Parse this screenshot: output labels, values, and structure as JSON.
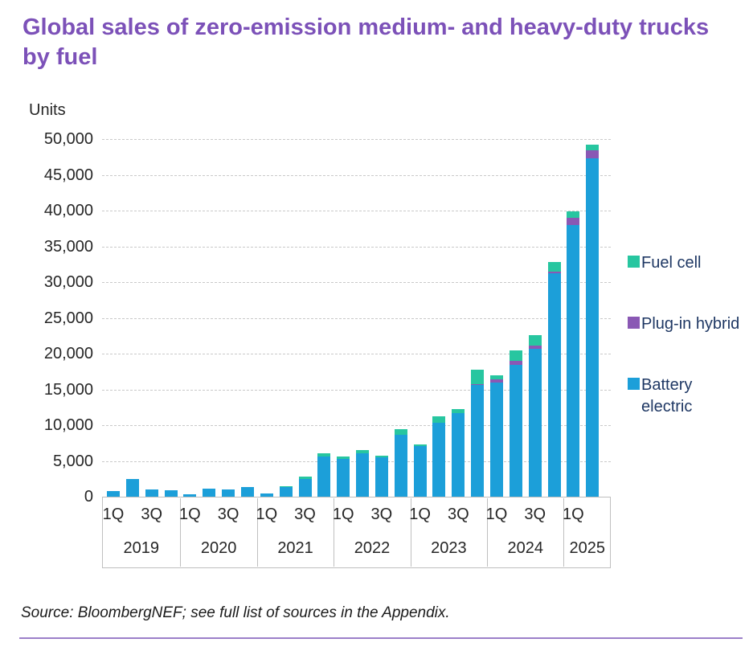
{
  "title": "Global sales of zero-emission medium- and heavy-duty trucks by fuel",
  "units_label": "Units",
  "source": "Source: BloombergNEF; see full list of sources in the Appendix.",
  "colors": {
    "title_text": "#7C51B8",
    "axis_text": "#262626",
    "legend_text": "#1F3864",
    "gridline": "#c9c9c9",
    "axis_box_border": "#bfbfbf",
    "bottom_rule": "#9C7FC9",
    "battery_electric": "#1C9FD9",
    "plug_in_hybrid": "#8A58B4",
    "fuel_cell": "#27C6A0"
  },
  "legend": [
    {
      "label": "Fuel cell",
      "color": "#27C6A0"
    },
    {
      "label": "Plug-in hybrid",
      "color": "#8A58B4"
    },
    {
      "label": "Battery electric",
      "color": "#1C9FD9"
    }
  ],
  "chart_data": {
    "type": "bar",
    "stacked": true,
    "title": "Global sales of zero-emission medium- and heavy-duty trucks by fuel",
    "ylabel": "Units",
    "ylim": [
      0,
      50000
    ],
    "ytick_step": 5000,
    "grid": "horizontal-dashed",
    "legend_position": "right",
    "quarter_tick_labels_shown": [
      "1Q",
      "3Q"
    ],
    "years": [
      "2019",
      "2020",
      "2021",
      "2022",
      "2023",
      "2024",
      "2025"
    ],
    "categories": [
      "2019 Q1",
      "2019 Q2",
      "2019 Q3",
      "2019 Q4",
      "2020 Q1",
      "2020 Q2",
      "2020 Q3",
      "2020 Q4",
      "2021 Q1",
      "2021 Q2",
      "2021 Q3",
      "2021 Q4",
      "2022 Q1",
      "2022 Q2",
      "2022 Q3",
      "2022 Q4",
      "2023 Q1",
      "2023 Q2",
      "2023 Q3",
      "2023 Q4",
      "2024 Q1",
      "2024 Q2",
      "2024 Q3",
      "2024 Q4",
      "2025 Q1",
      "2025 Q2"
    ],
    "series": [
      {
        "name": "Battery electric",
        "color": "#1C9FD9",
        "values": [
          800,
          2450,
          1000,
          900,
          350,
          1150,
          1050,
          1400,
          450,
          1400,
          2500,
          5600,
          5250,
          6050,
          5450,
          8600,
          7100,
          10300,
          11700,
          15600,
          15900,
          18450,
          20650,
          31200,
          38000,
          47300
        ]
      },
      {
        "name": "Plug-in hybrid",
        "color": "#8A58B4",
        "values": [
          0,
          0,
          0,
          0,
          0,
          0,
          0,
          0,
          0,
          0,
          0,
          0,
          0,
          0,
          0,
          0,
          0,
          0,
          0,
          150,
          480,
          560,
          450,
          300,
          950,
          1100
        ]
      },
      {
        "name": "Fuel cell",
        "color": "#27C6A0",
        "values": [
          0,
          0,
          0,
          0,
          0,
          0,
          0,
          0,
          0,
          100,
          260,
          450,
          350,
          450,
          250,
          800,
          250,
          950,
          500,
          2000,
          560,
          1490,
          1500,
          1300,
          950,
          800
        ]
      }
    ],
    "totals": [
      800,
      2450,
      1000,
      900,
      350,
      1150,
      1050,
      1400,
      450,
      1500,
      2760,
      6050,
      5600,
      6500,
      5700,
      9400,
      7350,
      11250,
      12200,
      17750,
      16940,
      20500,
      22600,
      32800,
      39900,
      49200
    ]
  }
}
